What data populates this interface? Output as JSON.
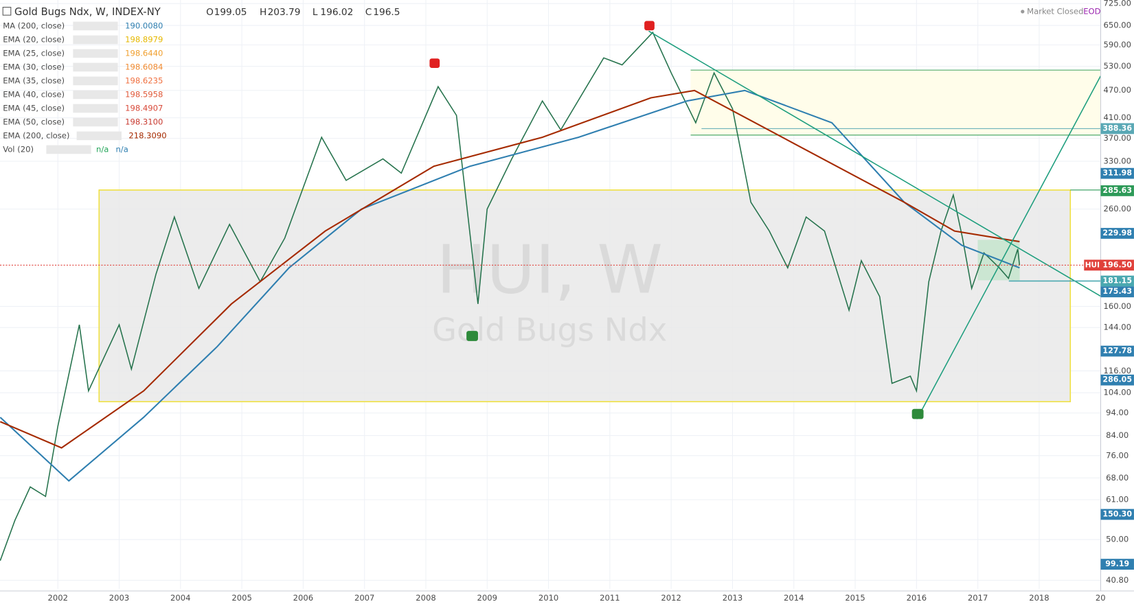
{
  "chart_data": {
    "type": "line",
    "title": "Gold Bugs Ndx, W, INDEX-NY",
    "ohlc_labels": [
      "O",
      "H",
      "L",
      "C"
    ],
    "ohlc": [
      199.05,
      203.79,
      196.02,
      196.5
    ],
    "status": "Market Closed",
    "feed": "EOD",
    "watermark": [
      "HUI, W",
      "Gold Bugs Ndx"
    ],
    "log_scale": true,
    "grid": true,
    "xlim": [
      2001.057,
      2019.003
    ],
    "xticks": [
      2002,
      2003,
      2004,
      2005,
      2006,
      2007,
      2008,
      2009,
      2010,
      2011,
      2012,
      2013,
      2014,
      2015,
      2016,
      2017,
      2018,
      {
        "value": 2019,
        "label": "20"
      }
    ],
    "ylim": [
      39.1,
      738
    ],
    "yticks": [
      {
        "value": 725,
        "label": "725.00"
      },
      {
        "value": 650,
        "label": "650.00"
      },
      {
        "value": 590,
        "label": "590.00"
      },
      {
        "value": 530,
        "label": "530.00"
      },
      {
        "value": 470,
        "label": "470.00"
      },
      {
        "value": 410,
        "label": "410.00"
      },
      {
        "value": 370,
        "label": "370.00"
      },
      {
        "value": 330,
        "label": "330.00"
      },
      {
        "value": 260,
        "label": "260.00"
      },
      {
        "value": 160,
        "label": "160.00"
      },
      {
        "value": 144,
        "label": "144.00"
      },
      {
        "value": 116,
        "label": "116.00"
      },
      {
        "value": 104,
        "label": "104.00"
      },
      {
        "value": 94,
        "label": "94.00"
      },
      {
        "value": 84,
        "label": "84.00"
      },
      {
        "value": 76,
        "label": "76.00"
      },
      {
        "value": 68,
        "label": "68.00"
      },
      {
        "value": 61,
        "label": "61.00"
      },
      {
        "value": 50,
        "label": "50.00"
      },
      {
        "value": 40.8,
        "label": "40.80"
      }
    ],
    "price": {
      "color": "#26734d",
      "x": [
        2001.06,
        2001.3,
        2001.55,
        2001.8,
        2002.0,
        2002.35,
        2002.5,
        2003.0,
        2003.2,
        2003.6,
        2003.9,
        2004.3,
        2004.8,
        2005.3,
        2005.7,
        2006.3,
        2006.7,
        2007.3,
        2007.6,
        2008.2,
        2008.5,
        2008.85,
        2009.0,
        2009.4,
        2009.9,
        2010.2,
        2010.9,
        2011.2,
        2011.7,
        2012.0,
        2012.4,
        2012.7,
        2013.0,
        2013.3,
        2013.6,
        2013.9,
        2014.2,
        2014.5,
        2014.9,
        2015.1,
        2015.4,
        2015.6,
        2015.9,
        2016.0,
        2016.2,
        2016.4,
        2016.6,
        2016.75,
        2016.9,
        2017.1,
        2017.35,
        2017.5,
        2017.65,
        2017.68
      ],
      "values": [
        45,
        55,
        65,
        62,
        88,
        146,
        105,
        146,
        117,
        188,
        250,
        175,
        241,
        181,
        225,
        372,
        300,
        334,
        311,
        479,
        415,
        162,
        260,
        334,
        446,
        386,
        553,
        534,
        628,
        513,
        400,
        513,
        429,
        269,
        233,
        194,
        250,
        233,
        157,
        201,
        168,
        109,
        113,
        105,
        181,
        233,
        279,
        225,
        175,
        209,
        194,
        184,
        213,
        196.5
      ]
    },
    "series": [
      {
        "name": "MA (200, close)",
        "value_label": "190.0080",
        "color": "#2f7fb0",
        "x": [
          2001.06,
          2002.18,
          2003.4,
          2004.6,
          2005.77,
          2006.95,
          2008.72,
          2010.49,
          2012.26,
          2013.2,
          2014.62,
          2015.8,
          2016.74,
          2017.68
        ],
        "values": [
          92,
          67,
          92,
          131,
          194,
          260,
          322,
          372,
          446,
          470,
          400,
          269,
          217,
          194
        ]
      },
      {
        "name": "EMA (200, close)",
        "value_label": "218.3090",
        "color": "#a52a00",
        "x": [
          2001.06,
          2002.06,
          2003.4,
          2004.83,
          2006.36,
          2008.13,
          2009.9,
          2011.67,
          2012.38,
          2014.03,
          2015.8,
          2016.62,
          2017.68
        ],
        "values": [
          90,
          79,
          105,
          162,
          233,
          322,
          372,
          453,
          470,
          359,
          269,
          233,
          221
        ]
      }
    ],
    "indicators": [
      {
        "name": "EMA (20, close)",
        "value_label": "198.8979",
        "color": "#e6b800"
      },
      {
        "name": "EMA (25, close)",
        "value_label": "198.6440",
        "color": "#f0a030"
      },
      {
        "name": "EMA (30, close)",
        "value_label": "198.6084",
        "color": "#f08a30"
      },
      {
        "name": "EMA (35, close)",
        "value_label": "198.6235",
        "color": "#f07040"
      },
      {
        "name": "EMA (40, close)",
        "value_label": "198.5958",
        "color": "#e05a3a"
      },
      {
        "name": "EMA (45, close)",
        "value_label": "198.4907",
        "color": "#d84a3a"
      },
      {
        "name": "EMA (50, close)",
        "value_label": "198.3100",
        "color": "#c83a30"
      }
    ],
    "volume": {
      "name": "Vol (20)",
      "values_labels": [
        "n/a",
        "n/a"
      ],
      "colors": [
        "#26a65b",
        "#2f7fb0"
      ]
    },
    "price_badges": [
      {
        "label": "388.36",
        "color": "#5aa8b5"
      },
      {
        "label": "311.98",
        "color": "#2f7fb0"
      },
      {
        "label": "285.63",
        "color": "#2d9a58"
      },
      {
        "label": "229.98",
        "color": "#2f7fb0"
      },
      {
        "tag": "HUI",
        "label": "196.50",
        "color": "#e0403a"
      },
      {
        "label": "181.15",
        "color": "#4aa8b0"
      },
      {
        "label": "175.43",
        "color": "#2f7fb0"
      },
      {
        "label": "127.78",
        "color": "#2f7fb0"
      },
      {
        "label": "286.05",
        "color": "#2f7fb0"
      },
      {
        "label": "150.30",
        "color": "#2f7fb0"
      },
      {
        "label": "99.19",
        "color": "#2f7fb0"
      }
    ]
  }
}
